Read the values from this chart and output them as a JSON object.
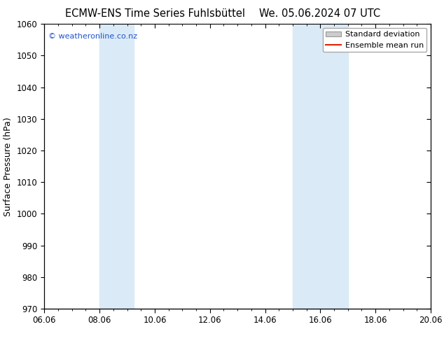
{
  "title_left": "ECMW-ENS Time Series Fuhlsbüttel",
  "title_right": "We. 05.06.2024 07 UTC",
  "ylabel": "Surface Pressure (hPa)",
  "ylim": [
    970,
    1060
  ],
  "yticks": [
    970,
    980,
    990,
    1000,
    1010,
    1020,
    1030,
    1040,
    1050,
    1060
  ],
  "xlim_start": 0,
  "xlim_end": 14,
  "xtick_labels": [
    "06.06",
    "08.06",
    "10.06",
    "12.06",
    "14.06",
    "16.06",
    "18.06",
    "20.06"
  ],
  "xtick_positions": [
    0,
    2,
    4,
    6,
    8,
    10,
    12,
    14
  ],
  "shaded_bands": [
    {
      "xmin": 2.0,
      "xmax": 3.25
    },
    {
      "xmin": 9.0,
      "xmax": 11.0
    }
  ],
  "shade_color": "#daeaf7",
  "copyright_text": "© weatheronline.co.nz",
  "copyright_color": "#2255cc",
  "legend_std_label": "Standard deviation",
  "legend_mean_label": "Ensemble mean run",
  "legend_std_color": "#cccccc",
  "legend_mean_color": "#dd2200",
  "background_color": "#ffffff",
  "plot_bg_color": "#ffffff",
  "title_fontsize": 10.5,
  "ylabel_fontsize": 9,
  "tick_fontsize": 8.5,
  "copyright_fontsize": 8,
  "legend_fontsize": 8
}
